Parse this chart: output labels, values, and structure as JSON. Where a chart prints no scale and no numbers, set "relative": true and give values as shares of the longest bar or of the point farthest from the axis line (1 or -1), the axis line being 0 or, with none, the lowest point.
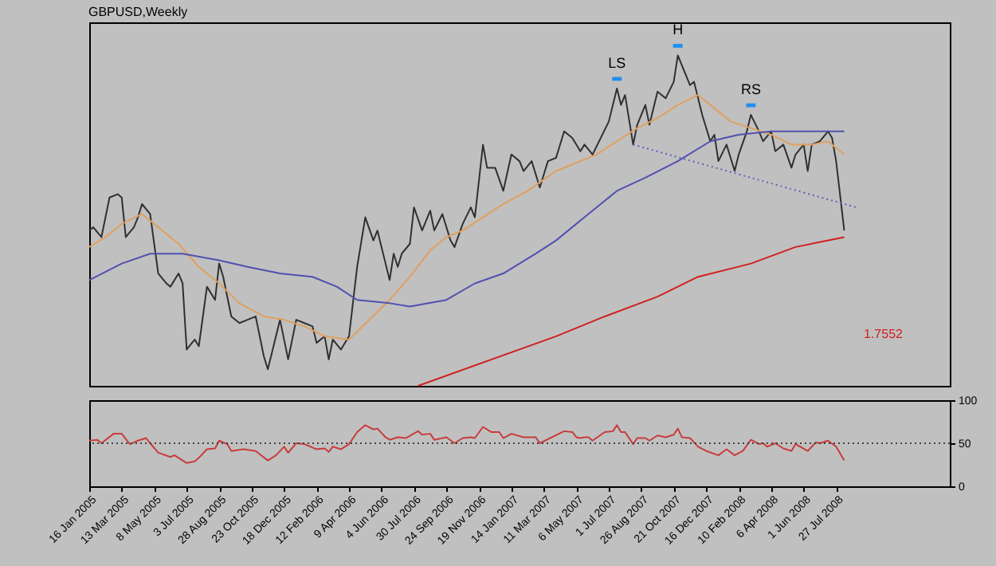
{
  "chart_data": [
    {
      "type": "line",
      "title": "GBPUSD,Weekly",
      "relative": true,
      "xlim": [
        "2005-01-16",
        "2009-02-08"
      ],
      "tick_labels": false,
      "series": [
        {
          "color": "#303030",
          "x": [
            "2005-01-16",
            "2005-01-23",
            "2005-02-06",
            "2005-02-20",
            "2005-03-06",
            "2005-03-13",
            "2005-03-20",
            "2005-04-03",
            "2005-04-10",
            "2005-04-17",
            "2005-05-01",
            "2005-05-08",
            "2005-05-15",
            "2005-05-29",
            "2005-06-05",
            "2005-06-19",
            "2005-06-26",
            "2005-07-03",
            "2005-07-17",
            "2005-07-24",
            "2005-08-07",
            "2005-08-21",
            "2005-08-28",
            "2005-09-04",
            "2005-09-18",
            "2005-10-02",
            "2005-10-16",
            "2005-10-30",
            "2005-11-13",
            "2005-11-20",
            "2005-12-04",
            "2005-12-11",
            "2005-12-25",
            "2006-01-08",
            "2006-01-22",
            "2006-02-05",
            "2006-02-12",
            "2006-02-26",
            "2006-03-05",
            "2006-03-12",
            "2006-03-26",
            "2006-04-09",
            "2006-04-23",
            "2006-05-07",
            "2006-05-21",
            "2006-05-28",
            "2006-06-11",
            "2006-06-18",
            "2006-06-25",
            "2006-07-02",
            "2006-07-09",
            "2006-07-23",
            "2006-07-30",
            "2006-08-13",
            "2006-08-27",
            "2006-09-03",
            "2006-09-17",
            "2006-10-01",
            "2006-10-08",
            "2006-10-22",
            "2006-11-05",
            "2006-11-12",
            "2006-11-26",
            "2006-12-03",
            "2006-12-17",
            "2006-12-31",
            "2007-01-14",
            "2007-01-28",
            "2007-02-04",
            "2007-02-18",
            "2007-03-04",
            "2007-03-18",
            "2007-04-01",
            "2007-04-15",
            "2007-04-29",
            "2007-05-13",
            "2007-05-20",
            "2007-06-03",
            "2007-06-17",
            "2007-07-01",
            "2007-07-15",
            "2007-07-22",
            "2007-07-29",
            "2007-08-12",
            "2007-08-19",
            "2007-09-02",
            "2007-09-09",
            "2007-09-23",
            "2007-10-07",
            "2007-10-21",
            "2007-10-28",
            "2007-11-04",
            "2007-11-18",
            "2007-11-25",
            "2007-12-09",
            "2007-12-23",
            "2007-12-30",
            "2008-01-06",
            "2008-01-20",
            "2008-02-03",
            "2008-02-10",
            "2008-02-24",
            "2008-03-02",
            "2008-03-16",
            "2008-03-23",
            "2008-04-06",
            "2008-04-13",
            "2008-04-27",
            "2008-05-11",
            "2008-05-18",
            "2008-06-01",
            "2008-06-08",
            "2008-06-15",
            "2008-06-29",
            "2008-07-13",
            "2008-07-20",
            "2008-07-27",
            "2008-08-10"
          ],
          "values": [
            0.47,
            0.48,
            0.45,
            0.57,
            0.58,
            0.57,
            0.45,
            0.48,
            0.51,
            0.55,
            0.52,
            0.43,
            0.34,
            0.31,
            0.3,
            0.34,
            0.31,
            0.11,
            0.14,
            0.12,
            0.3,
            0.26,
            0.37,
            0.33,
            0.21,
            0.19,
            0.2,
            0.21,
            0.09,
            0.05,
            0.15,
            0.2,
            0.08,
            0.2,
            0.19,
            0.18,
            0.13,
            0.15,
            0.08,
            0.14,
            0.11,
            0.15,
            0.36,
            0.51,
            0.44,
            0.47,
            0.37,
            0.32,
            0.4,
            0.36,
            0.4,
            0.43,
            0.54,
            0.47,
            0.53,
            0.47,
            0.52,
            0.44,
            0.42,
            0.49,
            0.54,
            0.51,
            0.73,
            0.66,
            0.66,
            0.59,
            0.7,
            0.68,
            0.65,
            0.68,
            0.6,
            0.68,
            0.69,
            0.77,
            0.75,
            0.71,
            0.73,
            0.7,
            0.75,
            0.8,
            0.9,
            0.85,
            0.88,
            0.73,
            0.79,
            0.85,
            0.79,
            0.89,
            0.87,
            0.92,
            1,
            0.97,
            0.91,
            0.92,
            0.82,
            0.74,
            0.76,
            0.68,
            0.73,
            0.65,
            0.7,
            0.77,
            0.82,
            0.77,
            0.74,
            0.77,
            0.71,
            0.73,
            0.66,
            0.7,
            0.73,
            0.65,
            0.73,
            0.74,
            0.77,
            0.75,
            0.68,
            0.47
          ]
        },
        {
          "color": "#e0a060",
          "x": [
            "2005-01-16",
            "2005-02-13",
            "2005-03-13",
            "2005-04-17",
            "2005-05-08",
            "2005-06-19",
            "2005-07-24",
            "2005-08-28",
            "2005-10-02",
            "2005-11-13",
            "2005-12-18",
            "2006-01-22",
            "2006-02-26",
            "2006-04-09",
            "2006-05-14",
            "2006-06-18",
            "2006-07-23",
            "2006-08-27",
            "2006-09-24",
            "2006-10-22",
            "2006-11-26",
            "2006-12-31",
            "2007-02-11",
            "2007-04-01",
            "2007-04-29",
            "2007-06-10",
            "2007-07-15",
            "2007-08-19",
            "2007-09-23",
            "2007-10-28",
            "2007-12-02",
            "2007-12-23",
            "2008-01-27",
            "2008-03-02",
            "2008-04-06",
            "2008-05-11",
            "2008-06-15",
            "2008-07-13",
            "2008-08-10"
          ],
          "values": [
            0.42,
            0.45,
            0.49,
            0.52,
            0.49,
            0.43,
            0.36,
            0.31,
            0.25,
            0.21,
            0.2,
            0.18,
            0.15,
            0.14,
            0.2,
            0.26,
            0.33,
            0.41,
            0.45,
            0.47,
            0.51,
            0.55,
            0.59,
            0.65,
            0.67,
            0.7,
            0.74,
            0.78,
            0.81,
            0.85,
            0.88,
            0.85,
            0.8,
            0.78,
            0.76,
            0.73,
            0.73,
            0.74,
            0.7
          ]
        },
        {
          "color": "#5050b0",
          "x": [
            "2005-01-16",
            "2005-03-13",
            "2005-05-01",
            "2005-06-26",
            "2005-08-28",
            "2005-10-16",
            "2005-12-11",
            "2006-02-05",
            "2006-03-19",
            "2006-04-23",
            "2006-06-18",
            "2006-07-23",
            "2006-09-24",
            "2006-11-12",
            "2006-12-31",
            "2007-02-25",
            "2007-04-01",
            "2007-05-20",
            "2007-07-15",
            "2007-09-02",
            "2007-10-28",
            "2007-12-23",
            "2008-02-10",
            "2008-04-06",
            "2008-06-01",
            "2008-08-10"
          ],
          "values": [
            0.32,
            0.37,
            0.4,
            0.4,
            0.38,
            0.36,
            0.34,
            0.33,
            0.3,
            0.26,
            0.25,
            0.24,
            0.26,
            0.31,
            0.34,
            0.4,
            0.44,
            0.51,
            0.59,
            0.63,
            0.68,
            0.74,
            0.76,
            0.77,
            0.77,
            0.77
          ]
        },
        {
          "color": "#d02020",
          "x": [
            "2006-08-06",
            "2007-04-01",
            "2007-06-24",
            "2007-09-23",
            "2007-12-02",
            "2008-03-02",
            "2008-05-18",
            "2008-08-10"
          ],
          "values": [
            0,
            0.15,
            0.21,
            0.27,
            0.33,
            0.37,
            0.42,
            0.45
          ]
        },
        {
          "color": "#6060c0",
          "line_style": "dotted",
          "x": [
            "2007-08-12",
            "2008-08-31"
          ],
          "values": [
            0.73,
            0.54
          ]
        }
      ],
      "annotations": [
        {
          "text": "LS",
          "x": "2007-07-15",
          "y": 0.9
        },
        {
          "text": "H",
          "x": "2007-10-28",
          "y": 1
        },
        {
          "text": "RS",
          "x": "2008-03-02",
          "y": 0.82
        },
        "1.7552"
      ]
    },
    {
      "type": "line",
      "xlim": [
        "2005-01-16",
        "2009-02-08"
      ],
      "ylim": [
        0,
        100
      ],
      "yticks": [
        0,
        50,
        100
      ],
      "xticks": [
        {
          "value": "2005-01-16",
          "label": "16 Jan 2005"
        },
        {
          "value": "2005-03-13",
          "label": "13 Mar 2005"
        },
        {
          "value": "2005-05-08",
          "label": "8 May 2005"
        },
        {
          "value": "2005-07-03",
          "label": "3 Jul 2005"
        },
        {
          "value": "2005-08-28",
          "label": "28 Aug 2005"
        },
        {
          "value": "2005-10-23",
          "label": "23 Oct 2005"
        },
        {
          "value": "2005-12-18",
          "label": "18 Dec 2005"
        },
        {
          "value": "2006-02-12",
          "label": "12 Feb 2006"
        },
        {
          "value": "2006-04-09",
          "label": "9 Apr 2006"
        },
        {
          "value": "2006-06-04",
          "label": "4 Jun 2006"
        },
        {
          "value": "2006-07-30",
          "label": "30 Jul 2006"
        },
        {
          "value": "2006-09-24",
          "label": "24 Sep 2006"
        },
        {
          "value": "2006-11-19",
          "label": "19 Nov 2006"
        },
        {
          "value": "2007-01-14",
          "label": "14 Jan 2007"
        },
        {
          "value": "2007-03-11",
          "label": "11 Mar 2007"
        },
        {
          "value": "2007-05-06",
          "label": "6 May 2007"
        },
        {
          "value": "2007-07-01",
          "label": "1 Jul 2007"
        },
        {
          "value": "2007-08-26",
          "label": "26 Aug 2007"
        },
        {
          "value": "2007-10-21",
          "label": "21 Oct 2007"
        },
        {
          "value": "2007-12-16",
          "label": "16 Dec 2007"
        },
        {
          "value": "2008-02-10",
          "label": "10 Feb 2008"
        },
        {
          "value": "2008-04-06",
          "label": "6 Apr 2008"
        },
        {
          "value": "2008-06-01",
          "label": "1 Jun 2008"
        },
        {
          "value": "2008-07-27",
          "label": "27 Jul 2008"
        }
      ],
      "ref_lines": [
        {
          "axis": "y",
          "value": 50,
          "line_style": "dotted",
          "color": "#404040"
        }
      ],
      "series": [
        {
          "color": "#c83c3c",
          "x": [
            "2005-01-16",
            "2005-01-30",
            "2005-02-06",
            "2005-02-27",
            "2005-03-13",
            "2005-03-27",
            "2005-04-10",
            "2005-04-24",
            "2005-05-01",
            "2005-05-15",
            "2005-06-05",
            "2005-06-12",
            "2005-07-03",
            "2005-07-17",
            "2005-07-24",
            "2005-08-07",
            "2005-08-21",
            "2005-08-28",
            "2005-09-11",
            "2005-09-18",
            "2005-10-09",
            "2005-10-30",
            "2005-11-20",
            "2005-12-04",
            "2005-12-18",
            "2005-12-25",
            "2006-01-08",
            "2006-01-22",
            "2006-02-12",
            "2006-02-26",
            "2006-03-05",
            "2006-03-12",
            "2006-03-26",
            "2006-04-09",
            "2006-04-23",
            "2006-05-07",
            "2006-05-21",
            "2006-05-28",
            "2006-06-11",
            "2006-06-18",
            "2006-07-02",
            "2006-07-16",
            "2006-08-06",
            "2006-08-13",
            "2006-08-27",
            "2006-09-03",
            "2006-09-24",
            "2006-10-08",
            "2006-10-22",
            "2006-11-05",
            "2006-11-12",
            "2006-11-26",
            "2006-12-10",
            "2006-12-24",
            "2006-12-31",
            "2007-01-14",
            "2007-02-04",
            "2007-02-25",
            "2007-03-04",
            "2007-03-25",
            "2007-04-15",
            "2007-04-29",
            "2007-05-06",
            "2007-05-13",
            "2007-05-20",
            "2007-05-27",
            "2007-06-03",
            "2007-06-24",
            "2007-07-08",
            "2007-07-15",
            "2007-07-22",
            "2007-07-29",
            "2007-08-12",
            "2007-08-19",
            "2007-09-02",
            "2007-09-09",
            "2007-09-23",
            "2007-10-07",
            "2007-10-21",
            "2007-10-28",
            "2007-11-04",
            "2007-11-18",
            "2007-12-02",
            "2007-12-16",
            "2008-01-06",
            "2008-01-20",
            "2008-02-03",
            "2008-02-17",
            "2008-03-02",
            "2008-03-16",
            "2008-03-23",
            "2008-03-30",
            "2008-04-13",
            "2008-04-27",
            "2008-05-11",
            "2008-05-18",
            "2008-06-08",
            "2008-06-22",
            "2008-06-29",
            "2008-07-13",
            "2008-07-27",
            "2008-08-10"
          ],
          "values": [
            53,
            54,
            50,
            61,
            61,
            49,
            53,
            56,
            50,
            39,
            34,
            36,
            27,
            29,
            33,
            43,
            44,
            53,
            49,
            41,
            43,
            41,
            30,
            36,
            46,
            39,
            50,
            49,
            43,
            44,
            40,
            46,
            43,
            49,
            63,
            71,
            66,
            67,
            57,
            54,
            57,
            56,
            64,
            60,
            61,
            54,
            57,
            50,
            56,
            57,
            56,
            69,
            63,
            63,
            56,
            61,
            57,
            57,
            50,
            57,
            64,
            63,
            57,
            56,
            57,
            57,
            53,
            63,
            64,
            71,
            63,
            63,
            49,
            56,
            56,
            53,
            59,
            57,
            60,
            67,
            57,
            56,
            46,
            41,
            36,
            43,
            36,
            41,
            54,
            49,
            50,
            46,
            50,
            44,
            41,
            49,
            41,
            51,
            50,
            53,
            46,
            30
          ]
        }
      ]
    }
  ]
}
